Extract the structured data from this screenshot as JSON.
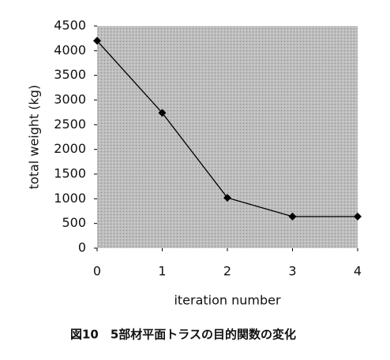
{
  "chart_data": {
    "type": "line",
    "x": [
      0,
      1,
      2,
      3,
      4
    ],
    "series": [
      {
        "color": "#000000",
        "values": [
          4200,
          2740,
          1020,
          640,
          640
        ]
      }
    ],
    "xlim": [
      0,
      4
    ],
    "xticks": [
      0,
      1,
      2,
      3,
      4
    ],
    "ylim": [
      0,
      4500
    ],
    "yticks": [
      0,
      500,
      1000,
      1500,
      2000,
      2500,
      3000,
      3500,
      4000,
      4500
    ],
    "xlabel": "iteration number",
    "ylabel": "total weight (kg)",
    "caption": "図10　5部材平面トラスの目的関数の変化",
    "background": "#bdbdbd"
  }
}
